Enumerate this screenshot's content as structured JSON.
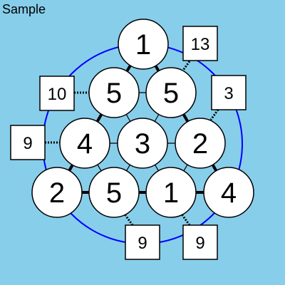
{
  "title": "Sample",
  "colors": {
    "background": "#87CEEB",
    "ring": "#0000FF",
    "cell_fill": "#FFFFFF",
    "stroke": "#000000"
  },
  "cells": [
    {
      "id": "r0c0",
      "value": "1"
    },
    {
      "id": "r1c0",
      "value": "5"
    },
    {
      "id": "r1c1",
      "value": "5"
    },
    {
      "id": "r2c0",
      "value": "4"
    },
    {
      "id": "r2c1",
      "value": "3"
    },
    {
      "id": "r2c2",
      "value": "2"
    },
    {
      "id": "r3c0",
      "value": "2"
    },
    {
      "id": "r3c1",
      "value": "5"
    },
    {
      "id": "r3c2",
      "value": "1"
    },
    {
      "id": "r3c3",
      "value": "4"
    }
  ],
  "clues": [
    {
      "id": "top-right",
      "value": "13"
    },
    {
      "id": "row1-left",
      "value": "10"
    },
    {
      "id": "right-upper",
      "value": "3"
    },
    {
      "id": "row2-left",
      "value": "9"
    },
    {
      "id": "bottom-left",
      "value": "9"
    },
    {
      "id": "bottom-right",
      "value": "9"
    }
  ]
}
